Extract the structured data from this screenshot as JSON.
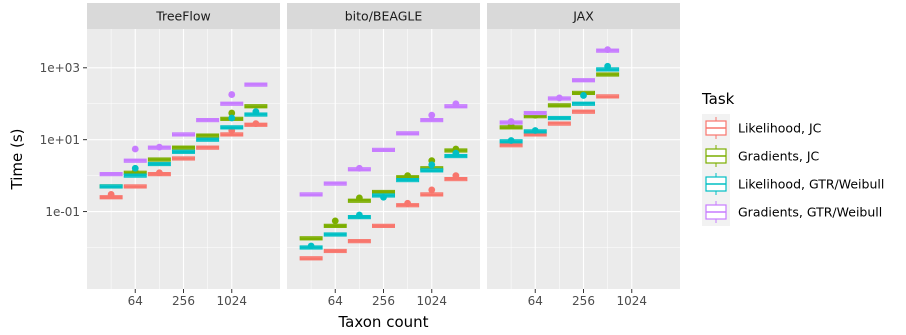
{
  "chart_data": {
    "type": "boxplot",
    "facets": [
      "TreeFlow",
      "bito/BEAGLE",
      "JAX"
    ],
    "xlabel": "Taxon count",
    "ylabel": "Time (s)",
    "x_scale": "log2",
    "y_scale": "log10",
    "x_ticks": [
      64,
      256,
      1024
    ],
    "x_tick_labels": [
      "64",
      "256",
      "1024"
    ],
    "y_ticks": [
      0.1,
      10,
      1000
    ],
    "y_tick_labels": [
      "1e-01",
      "1e+01",
      "1e+03"
    ],
    "xlim": [
      16,
      4096
    ],
    "ylim": [
      0.0007,
      12000
    ],
    "legend": {
      "title": "Task",
      "position": "right",
      "items": [
        {
          "label": "Likelihood, JC",
          "color": "#F8766D"
        },
        {
          "label": "Gradients, JC",
          "color": "#7CAE00"
        },
        {
          "label": "Likelihood, GTR/Weibull",
          "color": "#00BFC4"
        },
        {
          "label": "Gradients, GTR/Weibull",
          "color": "#C77CFF"
        }
      ]
    },
    "series": [
      {
        "facet": "TreeFlow",
        "data": {
          "Likelihood, JC": {
            "x": [
              32,
              64,
              128,
              256,
              512,
              1024,
              2048
            ],
            "y": [
              0.25,
              0.5,
              1.1,
              3,
              6,
              14,
              26
            ],
            "outliers": [
              [
                32,
                0.3
              ],
              [
                128,
                1.2
              ],
              [
                1024,
                18
              ],
              [
                2048,
                28
              ]
            ]
          },
          "Gradients, JC": {
            "x": [
              32,
              64,
              128,
              256,
              512,
              1024,
              2048
            ],
            "y": [
              0.5,
              1.2,
              2.8,
              6,
              13,
              38,
              85
            ],
            "outliers": [
              [
                64,
                1.3
              ],
              [
                1024,
                55
              ]
            ]
          },
          "Likelihood, GTR/Weibull": {
            "x": [
              32,
              64,
              128,
              256,
              512,
              1024,
              2048
            ],
            "y": [
              0.5,
              1.0,
              2.1,
              4.6,
              10,
              22,
              50
            ],
            "outliers": [
              [
                64,
                1.6
              ],
              [
                1024,
                40
              ],
              [
                2048,
                60
              ]
            ]
          },
          "Gradients, GTR/Weibull": {
            "x": [
              32,
              64,
              128,
              256,
              512,
              1024,
              2048
            ],
            "y": [
              1.1,
              2.6,
              6,
              14,
              35,
              100,
              340
            ],
            "outliers": [
              [
                64,
                5.5
              ],
              [
                128,
                6.2
              ],
              [
                1024,
                180
              ]
            ]
          }
        }
      },
      {
        "facet": "bito/BEAGLE",
        "data": {
          "Likelihood, JC": {
            "x": [
              32,
              64,
              128,
              256,
              512,
              1024,
              2048
            ],
            "y": [
              0.005,
              0.008,
              0.015,
              0.04,
              0.15,
              0.3,
              0.8
            ],
            "outliers": [
              [
                512,
                0.17
              ],
              [
                1024,
                0.4
              ],
              [
                2048,
                1.0
              ]
            ]
          },
          "Gradients, JC": {
            "x": [
              32,
              64,
              128,
              256,
              512,
              1024,
              2048
            ],
            "y": [
              0.018,
              0.04,
              0.2,
              0.35,
              0.9,
              1.6,
              5
            ],
            "outliers": [
              [
                64,
                0.055
              ],
              [
                128,
                0.24
              ],
              [
                512,
                1.0
              ],
              [
                1024,
                2.6
              ],
              [
                2048,
                5.5
              ]
            ]
          },
          "Likelihood, GTR/Weibull": {
            "x": [
              32,
              64,
              128,
              256,
              512,
              1024,
              2048
            ],
            "y": [
              0.01,
              0.023,
              0.07,
              0.28,
              0.75,
              1.4,
              3.5
            ],
            "outliers": [
              [
                32,
                0.011
              ],
              [
                128,
                0.08
              ],
              [
                256,
                0.25
              ],
              [
                1024,
                2.0
              ],
              [
                2048,
                4.2
              ]
            ]
          },
          "Gradients, GTR/Weibull": {
            "x": [
              32,
              64,
              128,
              256,
              512,
              1024,
              2048
            ],
            "y": [
              0.3,
              0.6,
              1.5,
              5.2,
              15,
              35,
              85
            ],
            "outliers": [
              [
                128,
                1.6
              ],
              [
                1024,
                48
              ],
              [
                2048,
                100
              ]
            ]
          }
        }
      },
      {
        "facet": "JAX",
        "data": {
          "Likelihood, JC": {
            "x": [
              32,
              64,
              128,
              256,
              512
            ],
            "y": [
              7,
              14,
              28,
              60,
              160
            ],
            "outliers": []
          },
          "Gradients, JC": {
            "x": [
              32,
              64,
              128,
              256,
              512
            ],
            "y": [
              22,
              45,
              90,
              200,
              650
            ],
            "outliers": [
              [
                32,
                25
              ],
              [
                64,
                48
              ]
            ]
          },
          "Likelihood, GTR/Weibull": {
            "x": [
              32,
              64,
              128,
              256,
              512
            ],
            "y": [
              9,
              17,
              40,
              100,
              900
            ],
            "outliers": [
              [
                32,
                9.5
              ],
              [
                64,
                18
              ],
              [
                256,
                170
              ],
              [
                512,
                1100
              ]
            ]
          },
          "Gradients, GTR/Weibull": {
            "x": [
              32,
              64,
              128,
              256,
              512
            ],
            "y": [
              30,
              55,
              140,
              450,
              3000
            ],
            "outliers": [
              [
                32,
                32
              ],
              [
                128,
                145
              ],
              [
                512,
                3200
              ]
            ]
          }
        }
      }
    ]
  }
}
